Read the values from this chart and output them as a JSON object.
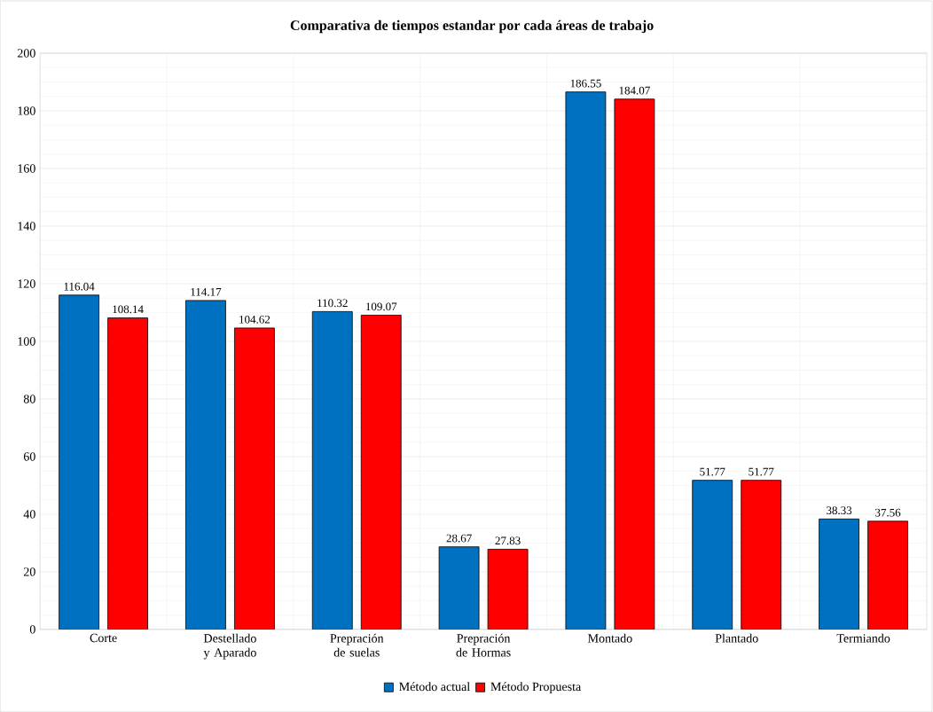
{
  "chart_data": {
    "type": "bar",
    "title": "Comparativa de tiempos estandar por cada áreas de trabajo",
    "categories": [
      "Corte",
      "Destellado y Aparado",
      "Prepración de suelas",
      "Prepración de Hormas",
      "Montado",
      "Plantado",
      "Termiando"
    ],
    "series": [
      {
        "name": "Método actual",
        "color": "#0070c0",
        "values": [
          116.04,
          114.17,
          110.32,
          28.67,
          186.55,
          51.77,
          38.33
        ]
      },
      {
        "name": "Método Propuesta",
        "color": "#ff0000",
        "values": [
          108.14,
          104.62,
          109.07,
          27.83,
          184.07,
          51.77,
          37.56
        ]
      }
    ],
    "ylim": [
      0,
      200
    ],
    "yticks": [
      0,
      20,
      40,
      60,
      80,
      100,
      120,
      140,
      160,
      180,
      200
    ],
    "grid": true,
    "legend": "bottom",
    "data_labels": true
  }
}
